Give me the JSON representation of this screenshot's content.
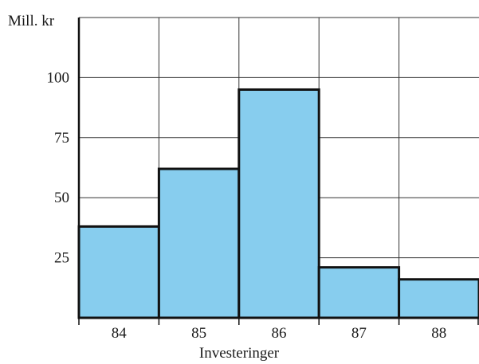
{
  "chart_data": {
    "type": "bar",
    "title": "",
    "ylabel": "Mill. kr",
    "xlabel": "Investeringer",
    "categories": [
      "84",
      "85",
      "86",
      "87",
      "88"
    ],
    "values": [
      38,
      62,
      95,
      21,
      16
    ],
    "ylim": [
      0,
      125
    ],
    "yticks": [
      "25",
      "50",
      "75",
      "100"
    ],
    "grid": true,
    "bar_color": "#87cdee",
    "edge_color": "#111111"
  }
}
